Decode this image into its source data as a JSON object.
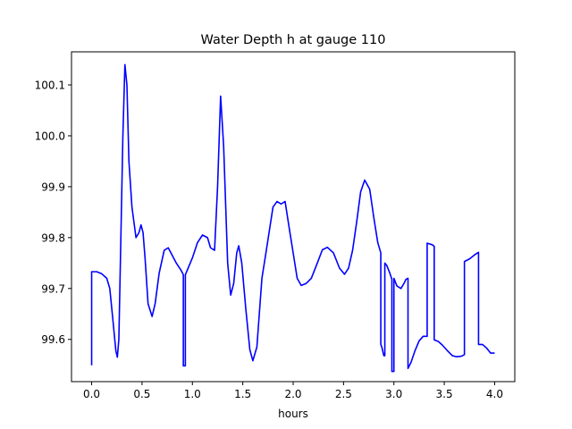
{
  "chart_data": {
    "type": "line",
    "title": "Water Depth h at gauge 110",
    "xlabel": "hours",
    "ylabel": "",
    "xlim": [
      -0.2,
      4.2
    ],
    "ylim": [
      99.517,
      100.165
    ],
    "xticks": [
      0.0,
      0.5,
      1.0,
      1.5,
      2.0,
      2.5,
      3.0,
      3.5,
      4.0
    ],
    "xtick_labels": [
      "0.0",
      "0.5",
      "1.0",
      "1.5",
      "2.0",
      "2.5",
      "3.0",
      "3.5",
      "4.0"
    ],
    "yticks": [
      99.6,
      99.7,
      99.8,
      99.9,
      100.0,
      100.1
    ],
    "ytick_labels": [
      "99.6",
      "99.7",
      "99.8",
      "99.9",
      "100.0",
      "100.1"
    ],
    "grid": false,
    "series": [
      {
        "color": "#0000ff",
        "points": [
          [
            0.0,
            99.549
          ],
          [
            0.0,
            99.733
          ],
          [
            0.05,
            99.733
          ],
          [
            0.1,
            99.729
          ],
          [
            0.15,
            99.72
          ],
          [
            0.18,
            99.7
          ],
          [
            0.21,
            99.64
          ],
          [
            0.24,
            99.578
          ],
          [
            0.255,
            99.565
          ],
          [
            0.27,
            99.6
          ],
          [
            0.29,
            99.8
          ],
          [
            0.31,
            100.0
          ],
          [
            0.33,
            100.14
          ],
          [
            0.35,
            100.1
          ],
          [
            0.37,
            99.95
          ],
          [
            0.4,
            99.86
          ],
          [
            0.44,
            99.8
          ],
          [
            0.47,
            99.81
          ],
          [
            0.49,
            99.825
          ],
          [
            0.51,
            99.81
          ],
          [
            0.53,
            99.76
          ],
          [
            0.56,
            99.67
          ],
          [
            0.6,
            99.645
          ],
          [
            0.63,
            99.67
          ],
          [
            0.67,
            99.73
          ],
          [
            0.72,
            99.775
          ],
          [
            0.76,
            99.78
          ],
          [
            0.8,
            99.765
          ],
          [
            0.84,
            99.75
          ],
          [
            0.89,
            99.735
          ],
          [
            0.91,
            99.727
          ],
          [
            0.91,
            99.548
          ],
          [
            0.93,
            99.548
          ],
          [
            0.93,
            99.727
          ],
          [
            1.0,
            99.76
          ],
          [
            1.05,
            99.79
          ],
          [
            1.1,
            99.805
          ],
          [
            1.15,
            99.8
          ],
          [
            1.18,
            99.78
          ],
          [
            1.22,
            99.775
          ],
          [
            1.25,
            99.9
          ],
          [
            1.28,
            100.078
          ],
          [
            1.31,
            99.98
          ],
          [
            1.35,
            99.75
          ],
          [
            1.38,
            99.687
          ],
          [
            1.41,
            99.71
          ],
          [
            1.44,
            99.77
          ],
          [
            1.46,
            99.784
          ],
          [
            1.49,
            99.75
          ],
          [
            1.53,
            99.66
          ],
          [
            1.57,
            99.58
          ],
          [
            1.6,
            99.558
          ],
          [
            1.64,
            99.585
          ],
          [
            1.69,
            99.72
          ],
          [
            1.73,
            99.77
          ],
          [
            1.8,
            99.86
          ],
          [
            1.84,
            99.871
          ],
          [
            1.88,
            99.866
          ],
          [
            1.92,
            99.871
          ],
          [
            1.96,
            99.82
          ],
          [
            2.0,
            99.77
          ],
          [
            2.04,
            99.72
          ],
          [
            2.08,
            99.706
          ],
          [
            2.13,
            99.71
          ],
          [
            2.18,
            99.72
          ],
          [
            2.23,
            99.745
          ],
          [
            2.29,
            99.776
          ],
          [
            2.34,
            99.781
          ],
          [
            2.4,
            99.77
          ],
          [
            2.46,
            99.74
          ],
          [
            2.51,
            99.728
          ],
          [
            2.55,
            99.74
          ],
          [
            2.59,
            99.775
          ],
          [
            2.63,
            99.83
          ],
          [
            2.67,
            99.89
          ],
          [
            2.71,
            99.913
          ],
          [
            2.76,
            99.895
          ],
          [
            2.8,
            99.84
          ],
          [
            2.84,
            99.79
          ],
          [
            2.87,
            99.77
          ],
          [
            2.87,
            99.59
          ],
          [
            2.88,
            99.585
          ],
          [
            2.9,
            99.568
          ],
          [
            2.91,
            99.568
          ],
          [
            2.91,
            99.75
          ],
          [
            2.93,
            99.745
          ],
          [
            2.96,
            99.73
          ],
          [
            2.98,
            99.718
          ],
          [
            2.98,
            99.537
          ],
          [
            3.0,
            99.537
          ],
          [
            3.0,
            99.72
          ],
          [
            3.03,
            99.705
          ],
          [
            3.07,
            99.7
          ],
          [
            3.1,
            99.71
          ],
          [
            3.12,
            99.718
          ],
          [
            3.14,
            99.72
          ],
          [
            3.14,
            99.543
          ],
          [
            3.17,
            99.555
          ],
          [
            3.21,
            99.578
          ],
          [
            3.25,
            99.597
          ],
          [
            3.29,
            99.606
          ],
          [
            3.33,
            99.606
          ],
          [
            3.33,
            99.789
          ],
          [
            3.38,
            99.786
          ],
          [
            3.4,
            99.783
          ],
          [
            3.4,
            99.599
          ],
          [
            3.44,
            99.596
          ],
          [
            3.48,
            99.589
          ],
          [
            3.53,
            99.578
          ],
          [
            3.58,
            99.568
          ],
          [
            3.62,
            99.566
          ],
          [
            3.67,
            99.567
          ],
          [
            3.7,
            99.57
          ],
          [
            3.7,
            99.753
          ],
          [
            3.75,
            99.758
          ],
          [
            3.8,
            99.766
          ],
          [
            3.84,
            99.771
          ],
          [
            3.84,
            99.59
          ],
          [
            3.88,
            99.59
          ],
          [
            3.92,
            99.583
          ],
          [
            3.96,
            99.573
          ],
          [
            4.0,
            99.573
          ]
        ]
      }
    ]
  }
}
